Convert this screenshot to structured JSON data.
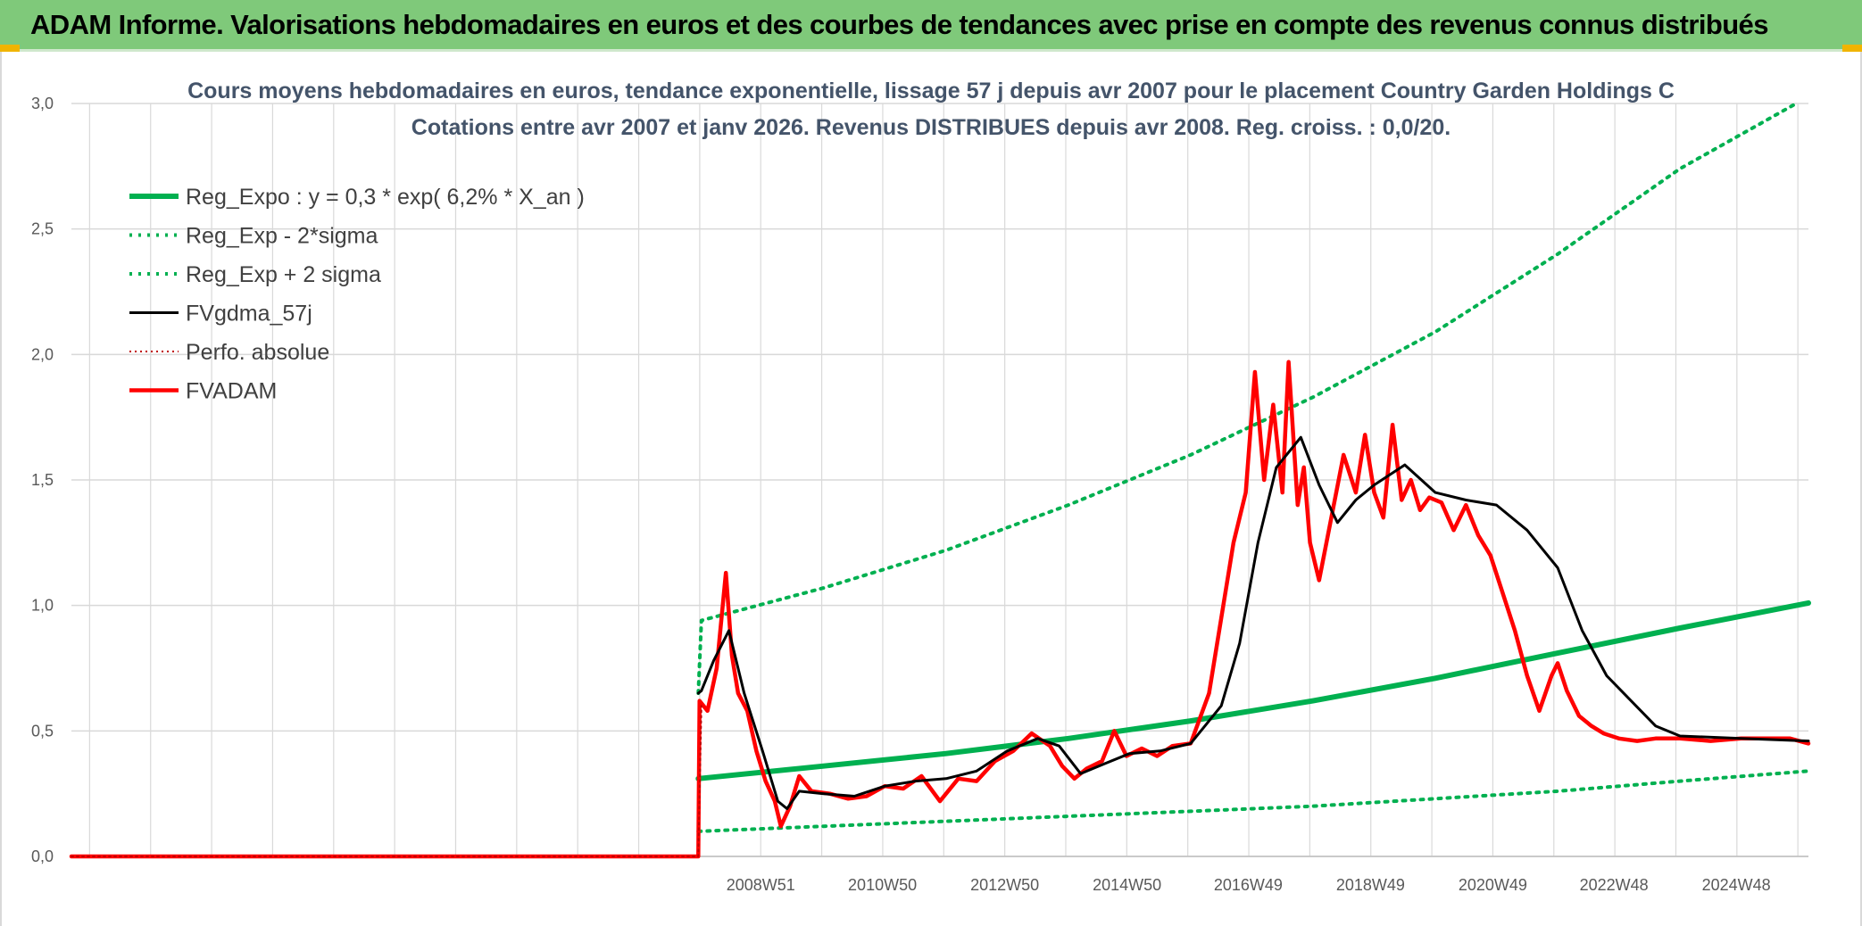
{
  "header": {
    "title": "ADAM Informe. Valorisations hebdomadaires en euros et des courbes de tendances avec prise en compte des revenus connus distribués"
  },
  "colors": {
    "banner": "#7fc97a",
    "reg_expo": "#00b050",
    "sigma": "#00b050",
    "fvgdma": "#000000",
    "perfo": "#c00000",
    "fvadam": "#ff0000",
    "grid": "#d9d9d9"
  },
  "chart_data": {
    "type": "line",
    "title_line1": "Cours moyens hebdomadaires en euros, tendance exponentielle, lissage 57 j depuis avr 2007 pour le placement Country Garden Holdings C",
    "title_line2": "Cotations entre avr 2007 et janv 2026. Revenus DISTRIBUES depuis avr 2008. Reg. croiss. : 0,0/20.",
    "ylim": [
      0,
      3.0
    ],
    "y_ticks": [
      "0,0",
      "0,5",
      "1,0",
      "1,5",
      "2,0",
      "2,5",
      "3,0"
    ],
    "x_tick_labels": [
      "2008W51",
      "2010W50",
      "2012W50",
      "2014W50",
      "2016W49",
      "2018W49",
      "2020W49",
      "2022W48",
      "2024W48"
    ],
    "x_range_years": [
      1997.7,
      2026.1
    ],
    "x_tick_years": [
      2008.97,
      2010.96,
      2012.96,
      2014.96,
      2016.94,
      2018.94,
      2020.94,
      2022.92,
      2024.92
    ],
    "grid": true,
    "legend_position": "top-left",
    "legend": [
      {
        "key": "reg_expo",
        "label": "Reg_Expo : y = 0,3 * exp( 6,2% *  X_an )",
        "style": "solid-thick"
      },
      {
        "key": "sigma_low",
        "label": "Reg_Exp - 2*sigma",
        "style": "dotted"
      },
      {
        "key": "sigma_high",
        "label": "Reg_Exp + 2 sigma",
        "style": "dotted"
      },
      {
        "key": "fvgdma",
        "label": "FVgdma_57j",
        "style": "solid"
      },
      {
        "key": "perfo",
        "label": "Perfo. absolue",
        "style": "dotted-thin"
      },
      {
        "key": "fvadam",
        "label": "FVADAM",
        "style": "solid-thick"
      }
    ],
    "series": [
      {
        "name": "Reg_Expo : y = 0,3 * exp( 6,2% *  X_an )",
        "x": [
          2007.95,
          2010,
          2012,
          2014,
          2016,
          2018,
          2020,
          2022,
          2024,
          2026.1
        ],
        "y": [
          0.31,
          0.36,
          0.41,
          0.47,
          0.54,
          0.62,
          0.71,
          0.81,
          0.91,
          1.01
        ]
      },
      {
        "name": "Reg_Exp - 2*sigma",
        "x": [
          2007.95,
          2010,
          2012,
          2014,
          2016,
          2018,
          2020,
          2022,
          2024,
          2026.1
        ],
        "y": [
          0.1,
          0.12,
          0.14,
          0.16,
          0.18,
          0.2,
          0.23,
          0.26,
          0.3,
          0.34
        ]
      },
      {
        "name": "Reg_Exp + 2 sigma",
        "x": [
          2007.95,
          2008.0,
          2010,
          2012,
          2014,
          2016,
          2018,
          2020,
          2022,
          2024,
          2025.9
        ],
        "y": [
          0.65,
          0.94,
          1.07,
          1.22,
          1.4,
          1.6,
          1.83,
          2.09,
          2.4,
          2.74,
          3.0
        ]
      },
      {
        "name": "FVgdma_57j",
        "x": [
          2007.95,
          2008.0,
          2008.2,
          2008.45,
          2008.7,
          2009.0,
          2009.25,
          2009.4,
          2009.6,
          2010,
          2010.5,
          2011,
          2011.5,
          2012,
          2012.5,
          2013,
          2013.5,
          2013.85,
          2014.2,
          2014.6,
          2015,
          2015.5,
          2016,
          2016.5,
          2016.8,
          2017.1,
          2017.4,
          2017.8,
          2018.1,
          2018.4,
          2018.7,
          2019.0,
          2019.5,
          2020,
          2020.5,
          2021,
          2021.5,
          2022.0,
          2022.4,
          2022.8,
          2023.2,
          2023.6,
          2024,
          2025,
          2026.1
        ],
        "y": [
          0.65,
          0.66,
          0.78,
          0.9,
          0.65,
          0.42,
          0.22,
          0.19,
          0.26,
          0.25,
          0.24,
          0.28,
          0.3,
          0.31,
          0.34,
          0.42,
          0.47,
          0.44,
          0.33,
          0.37,
          0.41,
          0.42,
          0.45,
          0.6,
          0.85,
          1.25,
          1.55,
          1.67,
          1.48,
          1.33,
          1.42,
          1.48,
          1.56,
          1.45,
          1.42,
          1.4,
          1.3,
          1.15,
          0.9,
          0.72,
          0.62,
          0.52,
          0.48,
          0.47,
          0.46
        ]
      },
      {
        "name": "Perfo. absolue",
        "x": [
          1997.7,
          2007.95,
          2008.0
        ],
        "y": [
          0.0,
          0.0,
          0.6
        ]
      },
      {
        "name": "FVADAM",
        "x": [
          1997.7,
          2007.95,
          2007.97,
          2008.1,
          2008.25,
          2008.4,
          2008.5,
          2008.6,
          2008.75,
          2008.9,
          2009.05,
          2009.2,
          2009.3,
          2009.45,
          2009.6,
          2009.8,
          2010.1,
          2010.4,
          2010.7,
          2011.0,
          2011.3,
          2011.6,
          2011.9,
          2012.2,
          2012.5,
          2012.8,
          2013.1,
          2013.4,
          2013.7,
          2013.9,
          2014.1,
          2014.3,
          2014.55,
          2014.75,
          2014.95,
          2015.2,
          2015.45,
          2015.7,
          2016.0,
          2016.3,
          2016.5,
          2016.7,
          2016.9,
          2017.05,
          2017.2,
          2017.35,
          2017.5,
          2017.6,
          2017.75,
          2017.85,
          2017.95,
          2018.1,
          2018.3,
          2018.5,
          2018.7,
          2018.85,
          2019.0,
          2019.15,
          2019.3,
          2019.45,
          2019.6,
          2019.75,
          2019.9,
          2020.1,
          2020.3,
          2020.5,
          2020.7,
          2020.9,
          2021.1,
          2021.3,
          2021.5,
          2021.7,
          2021.9,
          2022.0,
          2022.15,
          2022.35,
          2022.55,
          2022.75,
          2023.0,
          2023.3,
          2023.6,
          2024.0,
          2024.5,
          2025.0,
          2025.5,
          2025.8,
          2026.1
        ],
        "y": [
          0.0,
          0.0,
          0.62,
          0.58,
          0.75,
          1.13,
          0.8,
          0.65,
          0.58,
          0.42,
          0.3,
          0.22,
          0.12,
          0.2,
          0.32,
          0.26,
          0.25,
          0.23,
          0.24,
          0.28,
          0.27,
          0.32,
          0.22,
          0.31,
          0.3,
          0.38,
          0.42,
          0.49,
          0.44,
          0.36,
          0.31,
          0.35,
          0.38,
          0.5,
          0.4,
          0.43,
          0.4,
          0.44,
          0.45,
          0.65,
          0.95,
          1.25,
          1.45,
          1.93,
          1.5,
          1.8,
          1.45,
          1.97,
          1.4,
          1.55,
          1.25,
          1.1,
          1.35,
          1.6,
          1.45,
          1.68,
          1.45,
          1.35,
          1.72,
          1.42,
          1.5,
          1.38,
          1.43,
          1.41,
          1.3,
          1.4,
          1.28,
          1.2,
          1.05,
          0.9,
          0.72,
          0.58,
          0.72,
          0.77,
          0.66,
          0.56,
          0.52,
          0.49,
          0.47,
          0.46,
          0.47,
          0.47,
          0.46,
          0.47,
          0.47,
          0.47,
          0.45
        ]
      }
    ]
  }
}
